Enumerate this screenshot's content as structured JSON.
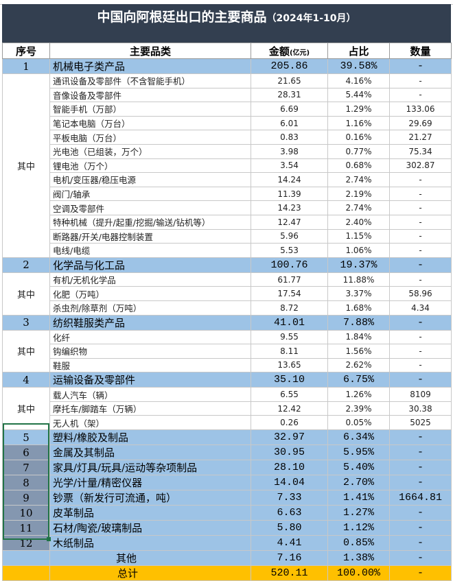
{
  "title": {
    "main": "中国向阿根廷出口的主要商品",
    "period": "（2024年1-10月）"
  },
  "headers": {
    "seq": "序号",
    "category": "主要品类",
    "amount": "金额",
    "amount_unit": "(亿元)",
    "share": "占比",
    "quantity": "数量"
  },
  "sub_label": "其中",
  "groups": [
    {
      "seq": "1",
      "name": "机械电子类产品",
      "amount": "205.86",
      "share": "39.58%",
      "qty": "-",
      "items": [
        {
          "name": "通讯设备及零部件（不含智能手机）",
          "amount": "21.65",
          "share": "4.16%",
          "qty": "-"
        },
        {
          "name": "音像设备及零部件",
          "amount": "28.31",
          "share": "5.44%",
          "qty": "-"
        },
        {
          "name": "智能手机（万部）",
          "amount": "6.69",
          "share": "1.29%",
          "qty": "133.06"
        },
        {
          "name": "笔记本电脑（万台）",
          "amount": "6.01",
          "share": "1.16%",
          "qty": "29.69"
        },
        {
          "name": "平板电脑（万台）",
          "amount": "0.83",
          "share": "0.16%",
          "qty": "21.27"
        },
        {
          "name": "光电池（已组装，万个）",
          "amount": "3.98",
          "share": "0.77%",
          "qty": "75.34"
        },
        {
          "name": "锂电池（万个）",
          "amount": "3.54",
          "share": "0.68%",
          "qty": "302.87"
        },
        {
          "name": "电机/变压器/稳压电源",
          "amount": "14.24",
          "share": "2.74%",
          "qty": "-"
        },
        {
          "name": "阀门/轴承",
          "amount": "11.39",
          "share": "2.19%",
          "qty": "-"
        },
        {
          "name": "空调及零部件",
          "amount": "14.23",
          "share": "2.74%",
          "qty": "-"
        },
        {
          "name": "特种机械（提升/起重/挖掘/输送/钻机等）",
          "amount": "12.47",
          "share": "2.40%",
          "qty": "-"
        },
        {
          "name": "断路器/开关/电器控制装置",
          "amount": "5.96",
          "share": "1.15%",
          "qty": "-"
        },
        {
          "name": "电线/电缆",
          "amount": "5.53",
          "share": "1.06%",
          "qty": "-"
        }
      ]
    },
    {
      "seq": "2",
      "name": "化学品与化工品",
      "amount": "100.76",
      "share": "19.37%",
      "qty": "-",
      "items": [
        {
          "name": "有机/无机化学品",
          "amount": "61.77",
          "share": "11.88%",
          "qty": "-"
        },
        {
          "name": "化肥（万吨）",
          "amount": "17.54",
          "share": "3.37%",
          "qty": "58.96"
        },
        {
          "name": "杀虫剂/除草剂（万吨）",
          "amount": "8.72",
          "share": "1.68%",
          "qty": "4.34"
        }
      ]
    },
    {
      "seq": "3",
      "name": "纺织鞋服类产品",
      "amount": "41.01",
      "share": "7.88%",
      "qty": "-",
      "items": [
        {
          "name": "化纤",
          "amount": "9.55",
          "share": "1.84%",
          "qty": "-"
        },
        {
          "name": "钩编织物",
          "amount": "8.11",
          "share": "1.56%",
          "qty": "-"
        },
        {
          "name": "鞋服",
          "amount": "13.65",
          "share": "2.62%",
          "qty": "-"
        }
      ]
    },
    {
      "seq": "4",
      "name": "运输设备及零部件",
      "amount": "35.10",
      "share": "6.75%",
      "qty": "-",
      "items": [
        {
          "name": "载人汽车（辆）",
          "amount": "6.55",
          "share": "1.26%",
          "qty": "8109"
        },
        {
          "name": "摩托车/脚踏车（万辆）",
          "amount": "12.42",
          "share": "2.39%",
          "qty": "30.38"
        },
        {
          "name": "无人机（架）",
          "amount": "0.26",
          "share": "0.05%",
          "qty": "5025"
        }
      ]
    },
    {
      "seq": "5",
      "name": "塑料/橡胶及制品",
      "amount": "32.97",
      "share": "6.34%",
      "qty": "-",
      "items": []
    },
    {
      "seq": "6",
      "name": "金属及其制品",
      "amount": "30.95",
      "share": "5.95%",
      "qty": "-",
      "items": []
    },
    {
      "seq": "7",
      "name": "家具/灯具/玩具/运动等杂项制品",
      "amount": "28.10",
      "share": "5.40%",
      "qty": "-",
      "items": []
    },
    {
      "seq": "8",
      "name": "光学/计量/精密仪器",
      "amount": "14.04",
      "share": "2.70%",
      "qty": "-",
      "items": []
    },
    {
      "seq": "9",
      "name": "钞票（新发行可流通，吨）",
      "amount": "7.33",
      "share": "1.41%",
      "qty": "1664.81",
      "items": []
    },
    {
      "seq": "10",
      "name": "皮革制品",
      "amount": "6.63",
      "share": "1.27%",
      "qty": "-",
      "items": []
    },
    {
      "seq": "11",
      "name": "石材/陶瓷/玻璃制品",
      "amount": "5.80",
      "share": "1.12%",
      "qty": "-",
      "items": []
    },
    {
      "seq": "12",
      "name": "木纸制品",
      "amount": "4.41",
      "share": "0.85%",
      "qty": "-",
      "items": []
    }
  ],
  "other": {
    "name": "其他",
    "amount": "7.16",
    "share": "1.38%",
    "qty": "-"
  },
  "total": {
    "name": "总计",
    "amount": "520.11",
    "share": "100.00%",
    "qty": "-"
  },
  "colors": {
    "title_bg": "#333f50",
    "main_row": "#9dc3e6",
    "selected_cells": "#8497b0",
    "total_row": "#ffc000",
    "selection_border": "#217346"
  }
}
